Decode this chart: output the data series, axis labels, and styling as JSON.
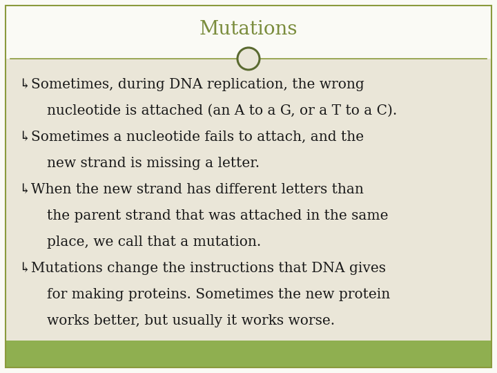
{
  "title": "Mutations",
  "title_color": "#7a8c3c",
  "background_color": "#f5f3ec",
  "white_top_bg": "#fafaf5",
  "content_bg_color": "#eae6d8",
  "bottom_bar_color": "#8faf50",
  "text_color": "#1a1a1a",
  "bullet_symbol": "↳",
  "divider_color": "#8a9a3c",
  "circle_fill": "#eae6d8",
  "circle_edge": "#5a6a30",
  "border_color": "#8a9a3c",
  "title_fontsize": 20,
  "body_fontsize": 14.5,
  "bullet_lines": [
    [
      "↳Sometimes, during DNA replication, the wrong",
      true
    ],
    [
      "nucleotide is attached (an A to a G, or a T to a C).",
      false
    ],
    [
      "↳Sometimes a nucleotide fails to attach, and the",
      true
    ],
    [
      "new strand is missing a letter.",
      false
    ],
    [
      "↳When the new strand has different letters than",
      true
    ],
    [
      "the parent strand that was attached in the same",
      false
    ],
    [
      "place, we call that a mutation.",
      false
    ],
    [
      "↳Mutations change the instructions that DNA gives",
      true
    ],
    [
      "for making proteins. Sometimes the new protein",
      false
    ],
    [
      "works better, but usually it works worse.",
      false
    ]
  ]
}
